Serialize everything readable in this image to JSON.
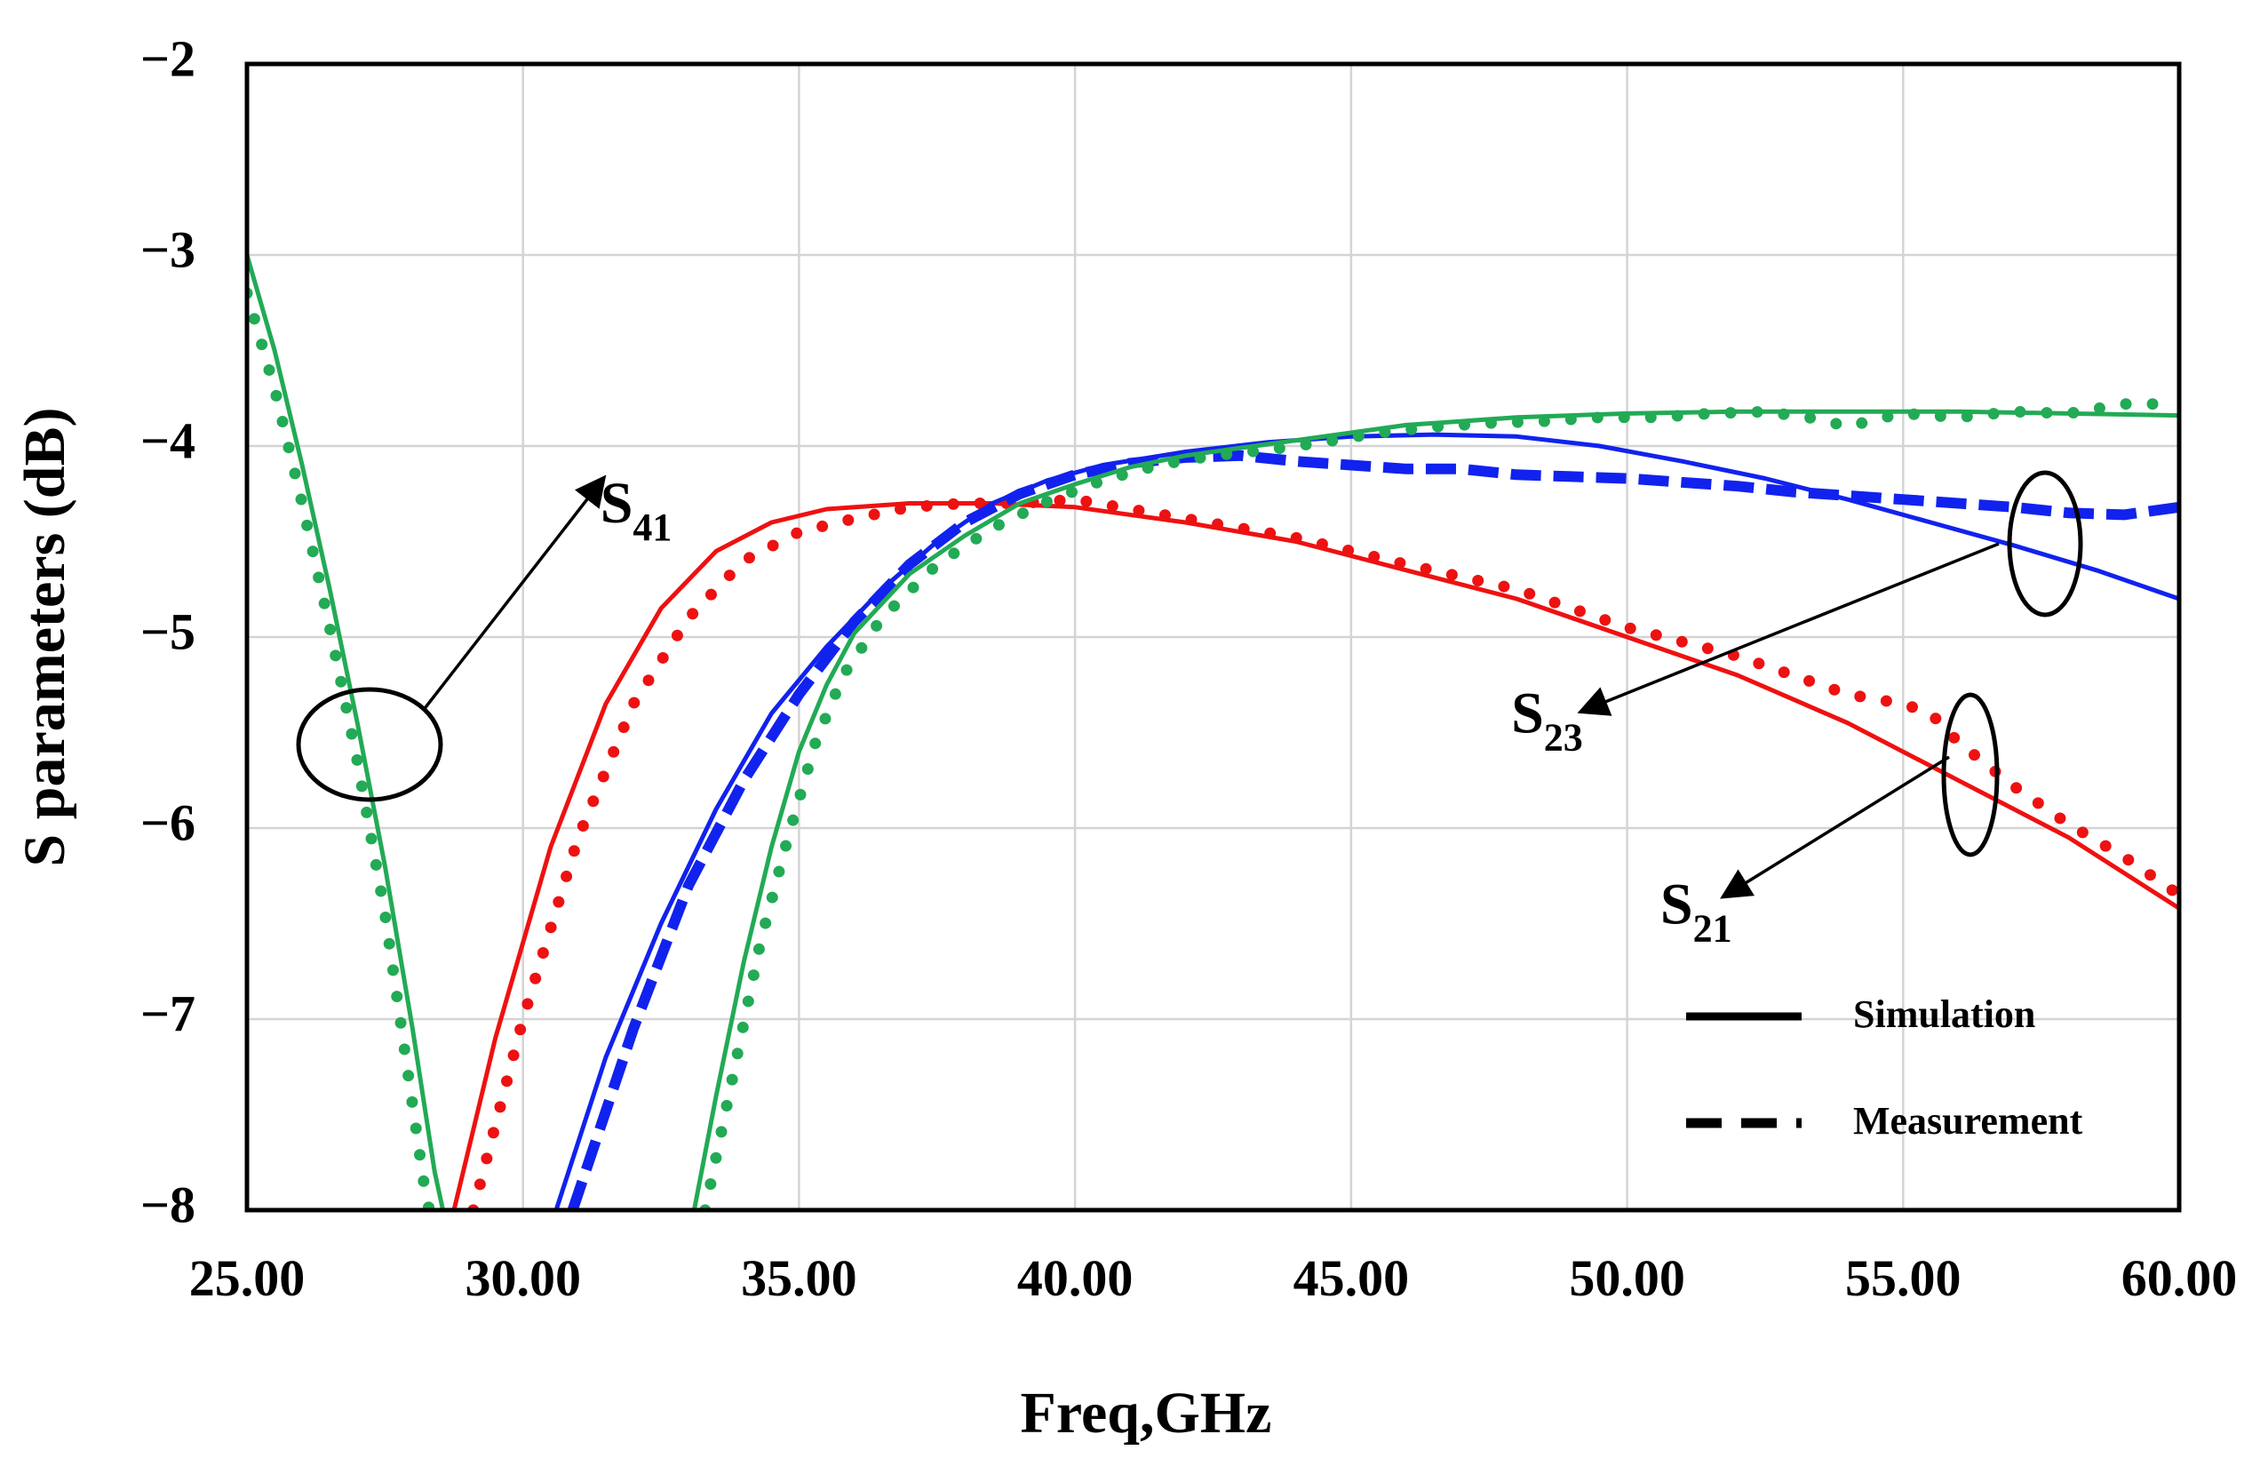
{
  "chart_data": {
    "type": "line",
    "xlabel": "Freq,GHz",
    "ylabel": "S parameters (dB)",
    "xlim": [
      25,
      60
    ],
    "ylim": [
      -8,
      -2
    ],
    "x_ticks": [
      "25.00",
      "30.00",
      "35.00",
      "40.00",
      "45.00",
      "50.00",
      "55.00",
      "60.00"
    ],
    "y_ticks": [
      "−8",
      "−7",
      "−6",
      "−5",
      "−4",
      "−3",
      "−2"
    ],
    "grid": true,
    "legend": {
      "placement": "bottom-right",
      "entries": [
        {
          "label": "Simulation",
          "style": "solid"
        },
        {
          "label": "Measurement",
          "style": "dashed"
        }
      ]
    },
    "annotations": [
      {
        "main": "S",
        "sub": "41",
        "x": 31.4,
        "y": -4.4
      },
      {
        "main": "S",
        "sub": "23",
        "x": 47.9,
        "y": -5.5
      },
      {
        "main": "S",
        "sub": "21",
        "x": 50.6,
        "y": -6.5
      }
    ],
    "series": [
      {
        "key": "s41_sim",
        "color": "#22aa55",
        "style": "solid",
        "points": [
          [
            25,
            -3.0
          ],
          [
            25.5,
            -3.5
          ],
          [
            26,
            -4.1
          ],
          [
            26.5,
            -4.75
          ],
          [
            27,
            -5.45
          ],
          [
            27.5,
            -6.2
          ],
          [
            28,
            -7.05
          ],
          [
            28.4,
            -7.8
          ],
          [
            28.55,
            -8.0
          ]
        ]
      },
      {
        "key": "s41_meas",
        "color": "#22aa55",
        "style": "dotted",
        "points": [
          [
            25,
            -3.2
          ],
          [
            25.5,
            -3.7
          ],
          [
            26,
            -4.3
          ],
          [
            26.5,
            -4.95
          ],
          [
            27,
            -5.65
          ],
          [
            27.5,
            -6.45
          ],
          [
            27.9,
            -7.25
          ],
          [
            28.2,
            -7.85
          ],
          [
            28.3,
            -8.0
          ]
        ]
      },
      {
        "key": "s21_sim",
        "color": "#ee1111",
        "style": "solid",
        "points": [
          [
            28.75,
            -8.0
          ],
          [
            29.5,
            -7.1
          ],
          [
            30.5,
            -6.1
          ],
          [
            31.5,
            -5.35
          ],
          [
            32.5,
            -4.85
          ],
          [
            33.5,
            -4.55
          ],
          [
            34.5,
            -4.4
          ],
          [
            35.5,
            -4.33
          ],
          [
            37,
            -4.3
          ],
          [
            38.5,
            -4.3
          ],
          [
            40,
            -4.32
          ],
          [
            42,
            -4.4
          ],
          [
            44,
            -4.5
          ],
          [
            46,
            -4.65
          ],
          [
            48,
            -4.8
          ],
          [
            50,
            -5.0
          ],
          [
            52,
            -5.2
          ],
          [
            54,
            -5.45
          ],
          [
            56,
            -5.75
          ],
          [
            58,
            -6.05
          ],
          [
            60,
            -6.42
          ]
        ]
      },
      {
        "key": "s21_meas",
        "color": "#ee1111",
        "style": "dotted",
        "points": [
          [
            29.1,
            -8.0
          ],
          [
            30,
            -7.0
          ],
          [
            31,
            -6.05
          ],
          [
            32,
            -5.35
          ],
          [
            33,
            -4.9
          ],
          [
            34,
            -4.6
          ],
          [
            35,
            -4.45
          ],
          [
            36,
            -4.38
          ],
          [
            37,
            -4.32
          ],
          [
            38,
            -4.3
          ],
          [
            39,
            -4.3
          ],
          [
            40,
            -4.28
          ],
          [
            41,
            -4.33
          ],
          [
            42,
            -4.38
          ],
          [
            44,
            -4.48
          ],
          [
            46,
            -4.62
          ],
          [
            48,
            -4.75
          ],
          [
            50,
            -4.95
          ],
          [
            52,
            -5.1
          ],
          [
            53,
            -5.2
          ],
          [
            54,
            -5.3
          ],
          [
            55,
            -5.35
          ],
          [
            55.5,
            -5.4
          ],
          [
            56,
            -5.55
          ],
          [
            57,
            -5.78
          ],
          [
            58,
            -5.98
          ],
          [
            59,
            -6.15
          ],
          [
            60,
            -6.35
          ]
        ]
      },
      {
        "key": "s23_sim",
        "color": "#1122ee",
        "style": "solid",
        "points": [
          [
            30.6,
            -8.0
          ],
          [
            31.5,
            -7.2
          ],
          [
            32.5,
            -6.5
          ],
          [
            33.5,
            -5.9
          ],
          [
            34.5,
            -5.4
          ],
          [
            35.5,
            -5.05
          ],
          [
            36.5,
            -4.75
          ],
          [
            37.5,
            -4.5
          ],
          [
            38.5,
            -4.3
          ],
          [
            39.5,
            -4.18
          ],
          [
            40.5,
            -4.1
          ],
          [
            42,
            -4.03
          ],
          [
            43.5,
            -3.98
          ],
          [
            45,
            -3.95
          ],
          [
            46.5,
            -3.94
          ],
          [
            48,
            -3.95
          ],
          [
            49.5,
            -4.0
          ],
          [
            51,
            -4.08
          ],
          [
            52.5,
            -4.17
          ],
          [
            54,
            -4.28
          ],
          [
            55.5,
            -4.4
          ],
          [
            57,
            -4.52
          ],
          [
            58.5,
            -4.65
          ],
          [
            60,
            -4.8
          ]
        ]
      },
      {
        "key": "s23_meas",
        "color": "#1122ee",
        "style": "dashed",
        "points": [
          [
            30.9,
            -8.0
          ],
          [
            32,
            -7.05
          ],
          [
            33,
            -6.3
          ],
          [
            34,
            -5.75
          ],
          [
            35,
            -5.3
          ],
          [
            36,
            -4.92
          ],
          [
            37,
            -4.62
          ],
          [
            38,
            -4.4
          ],
          [
            39,
            -4.25
          ],
          [
            40,
            -4.15
          ],
          [
            41,
            -4.09
          ],
          [
            42,
            -4.06
          ],
          [
            43,
            -4.05
          ],
          [
            44,
            -4.08
          ],
          [
            45,
            -4.1
          ],
          [
            46,
            -4.12
          ],
          [
            47,
            -4.12
          ],
          [
            48,
            -4.15
          ],
          [
            49,
            -4.16
          ],
          [
            50,
            -4.17
          ],
          [
            51,
            -4.19
          ],
          [
            52,
            -4.21
          ],
          [
            53,
            -4.24
          ],
          [
            54,
            -4.26
          ],
          [
            55,
            -4.28
          ],
          [
            56,
            -4.3
          ],
          [
            57,
            -4.32
          ],
          [
            58,
            -4.35
          ],
          [
            59,
            -4.36
          ],
          [
            60,
            -4.32
          ]
        ]
      },
      {
        "key": "s41b_sim",
        "color": "#22aa55",
        "style": "solid",
        "points": [
          [
            33.1,
            -8.0
          ],
          [
            33.5,
            -7.4
          ],
          [
            34,
            -6.7
          ],
          [
            34.5,
            -6.1
          ],
          [
            35,
            -5.6
          ],
          [
            35.5,
            -5.25
          ],
          [
            36,
            -4.98
          ],
          [
            37,
            -4.67
          ],
          [
            38,
            -4.47
          ],
          [
            39,
            -4.3
          ],
          [
            40,
            -4.2
          ],
          [
            41,
            -4.11
          ],
          [
            42,
            -4.05
          ],
          [
            43,
            -4.01
          ],
          [
            44,
            -3.97
          ],
          [
            45,
            -3.93
          ],
          [
            46,
            -3.89
          ],
          [
            47,
            -3.87
          ],
          [
            48,
            -3.85
          ],
          [
            50,
            -3.83
          ],
          [
            52,
            -3.82
          ],
          [
            54,
            -3.82
          ],
          [
            56,
            -3.82
          ],
          [
            58,
            -3.83
          ],
          [
            60,
            -3.84
          ]
        ]
      },
      {
        "key": "s41b_meas",
        "color": "#22aa55",
        "style": "dotted",
        "points": [
          [
            33.3,
            -8.0
          ],
          [
            33.8,
            -7.3
          ],
          [
            34.3,
            -6.6
          ],
          [
            34.8,
            -6.05
          ],
          [
            35.3,
            -5.55
          ],
          [
            35.8,
            -5.2
          ],
          [
            36.5,
            -4.9
          ],
          [
            37.5,
            -4.62
          ],
          [
            38.5,
            -4.43
          ],
          [
            39.5,
            -4.29
          ],
          [
            40.5,
            -4.18
          ],
          [
            41.5,
            -4.1
          ],
          [
            42.5,
            -4.05
          ],
          [
            43.5,
            -4.02
          ],
          [
            44.5,
            -3.98
          ],
          [
            45.5,
            -3.93
          ],
          [
            46.5,
            -3.9
          ],
          [
            47.5,
            -3.88
          ],
          [
            48.5,
            -3.87
          ],
          [
            49.5,
            -3.85
          ],
          [
            50.5,
            -3.85
          ],
          [
            51.5,
            -3.83
          ],
          [
            52.5,
            -3.82
          ],
          [
            53.5,
            -3.86
          ],
          [
            54,
            -3.9
          ],
          [
            54.5,
            -3.86
          ],
          [
            55,
            -3.83
          ],
          [
            56,
            -3.85
          ],
          [
            57,
            -3.82
          ],
          [
            58,
            -3.83
          ],
          [
            59,
            -3.78
          ],
          [
            60,
            -3.78
          ]
        ]
      }
    ]
  }
}
